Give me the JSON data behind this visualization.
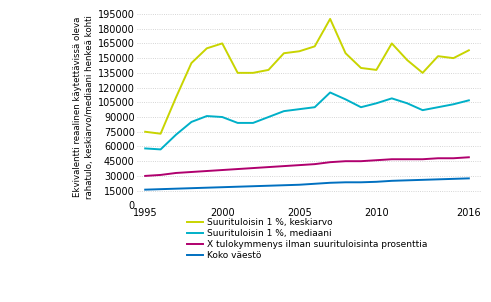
{
  "years": [
    1995,
    1996,
    1997,
    1998,
    1999,
    2000,
    2001,
    2002,
    2003,
    2004,
    2005,
    2006,
    2007,
    2008,
    2009,
    2010,
    2011,
    2012,
    2013,
    2014,
    2015,
    2016
  ],
  "keskiarvo": [
    75000,
    73000,
    110000,
    145000,
    160000,
    165000,
    135000,
    135000,
    138000,
    155000,
    157000,
    162000,
    190000,
    155000,
    140000,
    138000,
    165000,
    148000,
    135000,
    152000,
    150000,
    158000
  ],
  "mediaani": [
    58000,
    57000,
    72000,
    85000,
    91000,
    90000,
    84000,
    84000,
    90000,
    96000,
    98000,
    100000,
    115000,
    108000,
    100000,
    104000,
    109000,
    104000,
    97000,
    100000,
    103000,
    107000
  ],
  "x_tulokymmenys": [
    30000,
    31000,
    33000,
    34000,
    35000,
    36000,
    37000,
    38000,
    39000,
    40000,
    41000,
    42000,
    44000,
    45000,
    45000,
    46000,
    47000,
    47000,
    47000,
    48000,
    48000,
    49000
  ],
  "koko_vaesto": [
    16000,
    16500,
    17000,
    17500,
    18000,
    18500,
    19000,
    19500,
    20000,
    20500,
    21000,
    22000,
    23000,
    23500,
    23500,
    24000,
    25000,
    25500,
    26000,
    26500,
    27000,
    27500
  ],
  "color_keskiarvo": "#c8d400",
  "color_mediaani": "#00b0c8",
  "color_x_tulokymmenys": "#b0006e",
  "color_koko_vaesto": "#0070c0",
  "ylabel": "Ekvivalentti reaalinen käytettävissä oleva\nrahatulo, keskiarvo/mediaani henkeä kohti",
  "xticks": [
    1995,
    2000,
    2005,
    2010,
    2016
  ],
  "yticks": [
    0,
    15000,
    30000,
    45000,
    60000,
    75000,
    90000,
    105000,
    120000,
    135000,
    150000,
    165000,
    180000,
    195000
  ],
  "legend_labels": [
    "Suurituloisin 1 %, keskiarvo",
    "Suurituloisin 1 %, mediaani",
    "X tulokymmenys ilman suurituloisinta prosenttia",
    "Koko väestö"
  ],
  "background_color": "#ffffff",
  "grid_color": "#c8c8c8"
}
